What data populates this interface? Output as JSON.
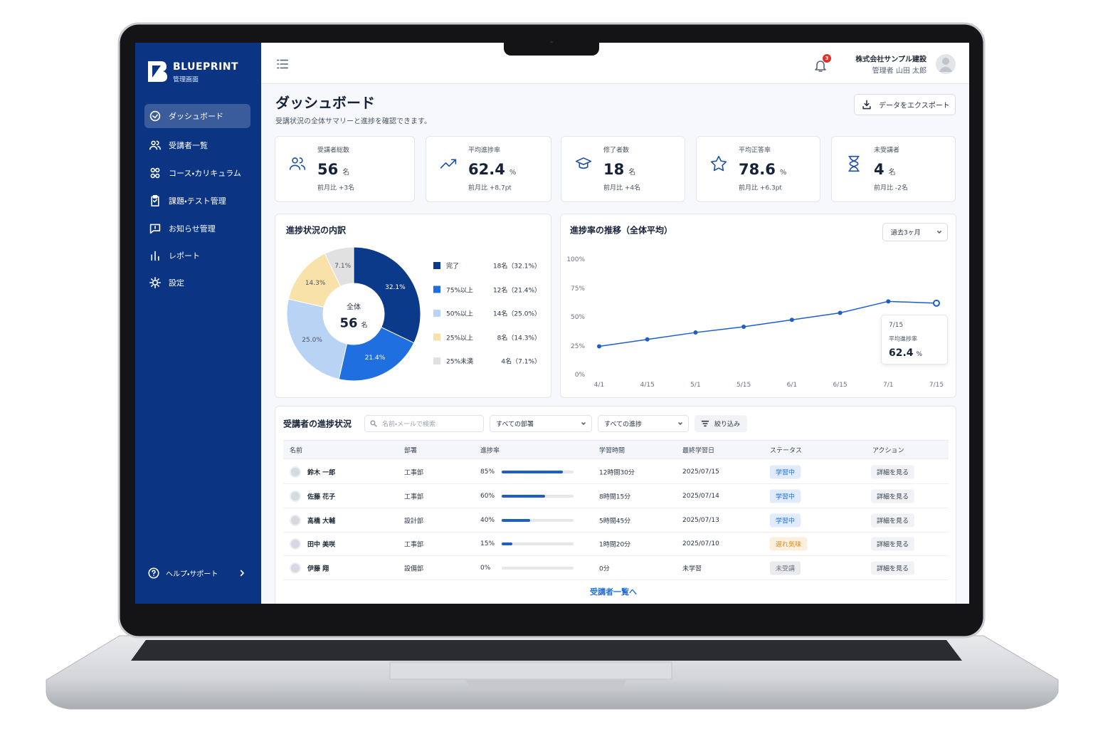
{
  "sidebar": {
    "brand": "BLUEPRINT",
    "brand_sub": "管理画面",
    "nav": [
      "ダッシュボード",
      "受講者一覧",
      "コース・カリキュラム",
      "課題・テスト管理",
      "お知らせ管理",
      "レポート",
      "設定"
    ],
    "active": 0,
    "help": "ヘルプ・サポート"
  },
  "header": {
    "notifications": 3,
    "company": "株式会社サンプル建設",
    "user": "管理者 山田 太郎"
  },
  "page": {
    "title": "ダッシュボード",
    "subtitle": "受講状況の全体サマリーと進捗を確認できます。",
    "export": "データをエクスポート"
  },
  "kpis": [
    {
      "label": "受講者総数",
      "value": 56,
      "unit": "名",
      "change": "前月比 +3名"
    },
    {
      "label": "平均進捗率",
      "value": 62.4,
      "unit": "%",
      "change": "前月比 +8.7pt"
    },
    {
      "label": "修了者数",
      "value": 18,
      "unit": "名",
      "change": "前月比 +4名"
    },
    {
      "label": "平均正答率",
      "value": 78.6,
      "unit": "%",
      "change": "前月比 +6.3pt"
    },
    {
      "label": "未受講者",
      "value": 4,
      "unit": "名",
      "change": "前月比 -2名"
    }
  ],
  "progress_breakdown": {
    "type": "pie",
    "title": "進捗状況の内訳",
    "center_label": "全体",
    "center_value": 56,
    "center_unit": "名",
    "categories": [
      "完了",
      "75%以上",
      "50%以上",
      "25%以上",
      "25%未満"
    ],
    "values": [
      32.1,
      21.4,
      25.0,
      14.3,
      7.1
    ],
    "value_labels": [
      "32.1%",
      "21.4%",
      "25.0%",
      "14.3%",
      "7.1%"
    ],
    "legend_labels": [
      "18名（32.1%）",
      "12名（21.4%）",
      "14名（25.0%）",
      "8名（14.3%）",
      "4名（7.1%）"
    ],
    "colors": [
      "#0c3a8a",
      "#1f6fe0",
      "#b9d3f4",
      "#f8e2a9",
      "#e1e1e1"
    ]
  },
  "progress_trend": {
    "type": "line",
    "title": "進捗率の推移（全体平均）",
    "period": "過去3ヶ月",
    "categories": [
      "4/1",
      "4/15",
      "5/1",
      "5/15",
      "6/1",
      "6/15",
      "7/1",
      "7/15"
    ],
    "values": [
      25,
      31,
      37,
      42,
      48,
      54,
      64,
      62.4
    ],
    "color": "#1d5fc6",
    "ylim": [
      0,
      100
    ],
    "yticks": [
      {
        "value": 0,
        "label": "0%"
      },
      {
        "value": 25,
        "label": "25%"
      },
      {
        "value": 50,
        "label": "50%"
      },
      {
        "value": 75,
        "label": "75%"
      },
      {
        "value": 100,
        "label": "100%"
      }
    ],
    "grid": false,
    "tooltip": {
      "label": "平均進捗率",
      "unit": "%"
    }
  },
  "table": {
    "title": "受講者の進捗状況",
    "search_placeholder": "名前・メールで検索",
    "filters": [
      "すべての部署",
      "すべての進捗"
    ],
    "filter_button": "絞り込み",
    "columns": [
      "名前",
      "部署",
      "進捗率",
      "学習時間",
      "最終学習日",
      "ステータス",
      "アクション"
    ],
    "progress_scale": [
      0,
      100
    ],
    "rows": [
      {
        "name": "鈴木 一郎",
        "department": "工事部",
        "progress": 85,
        "progress_label": "85%",
        "study_time": "12時間30分",
        "last_study": "2025/07/15",
        "status": "学習中",
        "status_color": "#1f6fe0",
        "action": "詳細を見る"
      },
      {
        "name": "佐藤 花子",
        "department": "工事部",
        "progress": 60,
        "progress_label": "60%",
        "study_time": "8時間15分",
        "last_study": "2025/07/14",
        "status": "学習中",
        "status_color": "#1f6fe0",
        "action": "詳細を見る"
      },
      {
        "name": "高橋 大輔",
        "department": "設計部",
        "progress": 40,
        "progress_label": "40%",
        "study_time": "5時間45分",
        "last_study": "2025/07/13",
        "status": "学習中",
        "status_color": "#1f6fe0",
        "action": "詳細を見る"
      },
      {
        "name": "田中 美咲",
        "department": "工事部",
        "progress": 15,
        "progress_label": "15%",
        "study_time": "1時間20分",
        "last_study": "2025/07/10",
        "status": "遅れ気味",
        "status_color": "#e08a12",
        "action": "詳細を見る"
      },
      {
        "name": "伊藤 翔",
        "department": "設備部",
        "progress": 0,
        "progress_label": "0%",
        "study_time": "0分",
        "last_study": "未学習",
        "status": "未受講",
        "status_color": "#6b7280",
        "action": "詳細を見る"
      }
    ],
    "footer_link": "受講者一覧へ"
  }
}
